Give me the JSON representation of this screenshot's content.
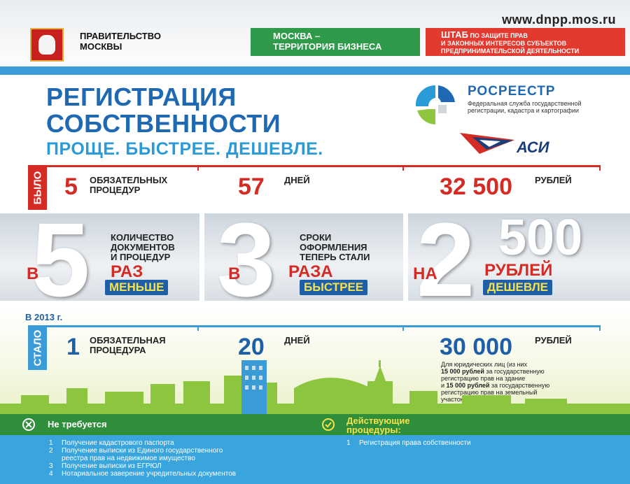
{
  "header": {
    "site": "www.dnpp.mos.ru",
    "gov_line1": "ПРАВИТЕЛЬСТВО",
    "gov_line2": "МОСКВЫ",
    "moscow_line1": "МОСКВА –",
    "moscow_line2": "ТЕРРИТОРИЯ БИЗНЕСА",
    "shtab_big": "ШТАБ",
    "shtab_line1": "по защите прав",
    "shtab_line2": "и законных интересов субъектов",
    "shtab_line3": "предпринимательской деятельности"
  },
  "title": {
    "line1": "РЕГИСТРАЦИЯ",
    "line2": "СОБСТВЕННОСТИ",
    "subtitle": "ПРОЩЕ. БЫСТРЕЕ. ДЕШЕВЛЕ."
  },
  "rosreestr": {
    "name": "РОСРЕЕСТР",
    "sub": "Федеральная служба государственной регистрации, кадастра и картографии"
  },
  "asi": {
    "name": "АСИ"
  },
  "bylo": {
    "tag": "БЫЛО",
    "procedures_num": "5",
    "procedures_line1": "ОБЯЗАТЕЛЬНЫХ",
    "procedures_line2": "ПРОЦЕДУР",
    "days_num": "57",
    "days_label": "ДНЕЙ",
    "cost_num": "32 500",
    "cost_label": "РУБЛЕЙ"
  },
  "panels": {
    "p1": {
      "prefix": "В",
      "num": "5",
      "cap1": "КОЛИЧЕСТВО",
      "cap2": "ДОКУМЕНТОВ",
      "cap3": "И ПРОЦЕДУР",
      "mid": "РАЗ",
      "badge": "МЕНЬШЕ"
    },
    "p2": {
      "prefix": "В",
      "num": "3",
      "cap1": "СРОКИ",
      "cap2": "ОФОРМЛЕНИЯ",
      "cap3": "ТЕПЕРЬ СТАЛИ",
      "mid": "РАЗА",
      "badge": "БЫСТРЕЕ"
    },
    "p3": {
      "prefix": "НА",
      "num": "2",
      "num2": "500",
      "mid": "РУБЛЕЙ",
      "badge": "ДЕШЕВЛЕ"
    }
  },
  "stalo": {
    "year": "В 2013 г.",
    "tag": "СТАЛО",
    "procedures_num": "1",
    "procedures_line1": "ОБЯЗАТЕЛЬНАЯ",
    "procedures_line2": "ПРОЦЕДУРА",
    "days_num": "20",
    "days_label": "ДНЕЙ",
    "cost_num": "30 000",
    "cost_label": "РУБЛЕЙ",
    "note_1": "Для юридических лиц (из них",
    "note_2b": "15 000 рублей",
    "note_2": " за государственную",
    "note_3": "регистрацию прав на здание",
    "note_4a": "и ",
    "note_4b": "15 000 рублей",
    "note_4": " за государственную",
    "note_5": "регистрацию прав на земельный",
    "note_6": "участок)"
  },
  "not_required": {
    "title": "Не требуется",
    "items": [
      {
        "n": "1",
        "text": "Получение кадастрового паспорта"
      },
      {
        "n": "2",
        "text": "Получение выписки из Единого государственного"
      },
      {
        "n": "",
        "text": "реестра прав на недвижимое имущество"
      },
      {
        "n": "3",
        "text": "Получение выписки из ЕГРЮЛ"
      },
      {
        "n": "4",
        "text": "Нотариальное заверение учредительных документов"
      }
    ]
  },
  "current": {
    "title1": "Действующие",
    "title2": "процедуры:",
    "items": [
      {
        "n": "1",
        "text": "Регистрация права собственности"
      }
    ]
  },
  "colors": {
    "red": "#d42b24",
    "blue": "#1f69b3",
    "green": "#2f8e3a",
    "light_blue": "#3aa4dc",
    "yellow": "#f7e14b"
  }
}
